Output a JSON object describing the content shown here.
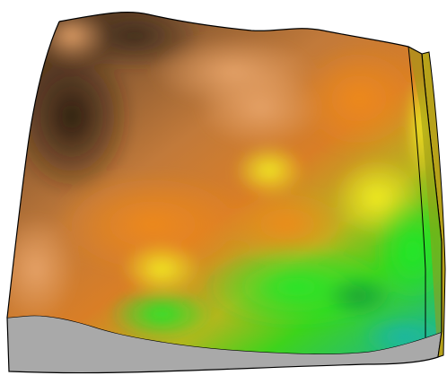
{
  "scene": {
    "background_color": "#ffffff",
    "base_color": "#a9a9a9",
    "outline_color": "#000000",
    "surface_palette": {
      "low_teal": "#1fbf9a",
      "low_green": "#22d82b",
      "mid_yellow_green": "#b8e21a",
      "mid_yellow": "#e2e026",
      "mid_orange": "#e07a22",
      "high_tan": "#c9925c",
      "high_dark": "#3e2a1a"
    },
    "icons": []
  }
}
